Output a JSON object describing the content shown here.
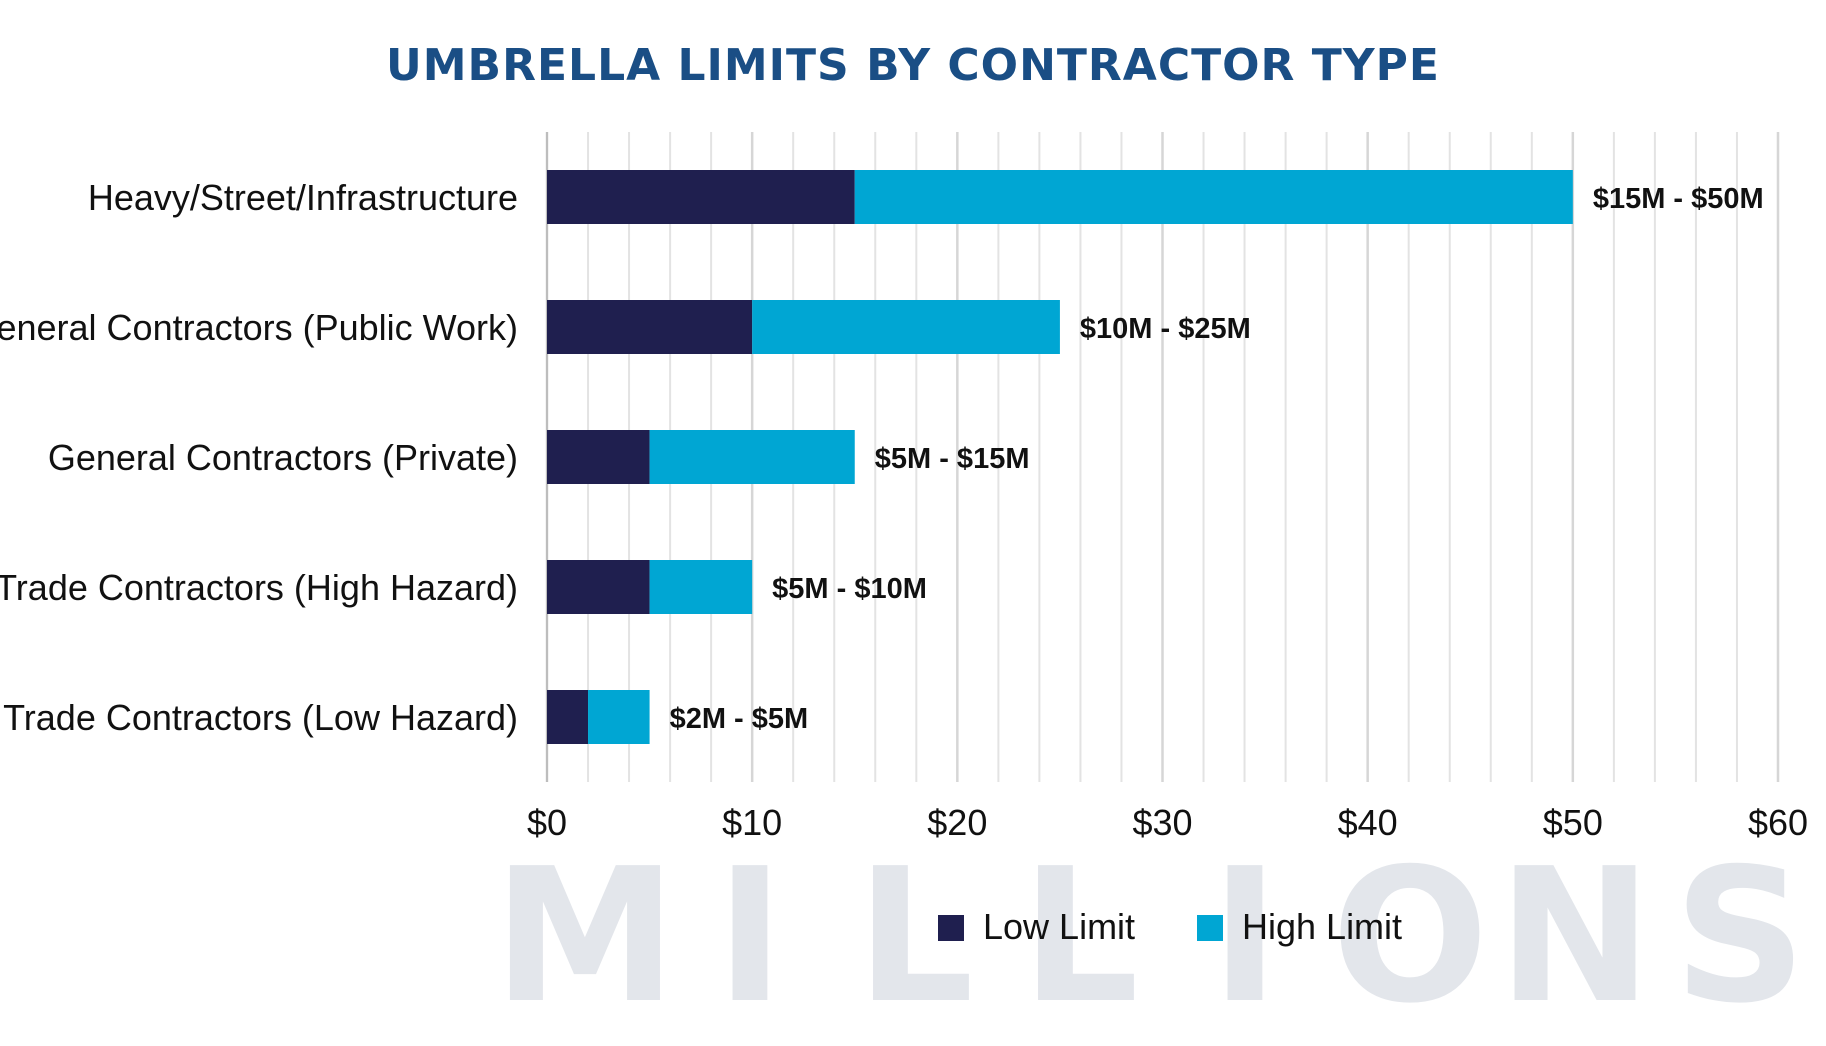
{
  "chart_data": {
    "type": "bar",
    "orientation": "horizontal",
    "stacked": true,
    "title": "UMBRELLA LIMITS BY CONTRACTOR TYPE",
    "watermark": "MILLIONS",
    "xlabel": "",
    "ylabel": "",
    "xlim": [
      0,
      60
    ],
    "x_ticks": [
      0,
      10,
      20,
      30,
      40,
      50,
      60
    ],
    "x_tick_labels": [
      "$0",
      "$10",
      "$20",
      "$30",
      "$40",
      "$50",
      "$60"
    ],
    "minor_grid_step": 2,
    "grid": true,
    "legend_position": "bottom",
    "categories": [
      "Heavy/Street/Infrastructure",
      "General Contractors (Public Work)",
      "General Contractors (Private)",
      "Trade Contractors (High Hazard)",
      "Trade Contractors (Low Hazard)"
    ],
    "series": [
      {
        "name": "Low Limit",
        "color": "#1f1f4f",
        "low": [
          0,
          0,
          0,
          0,
          0
        ],
        "high": [
          15,
          10,
          5,
          5,
          2
        ]
      },
      {
        "name": "High Limit",
        "color": "#00a6d3",
        "low": [
          15,
          10,
          5,
          5,
          2
        ],
        "high": [
          50,
          25,
          15,
          10,
          5
        ]
      }
    ],
    "data_labels": [
      "$15M - $50M",
      "$10M - $25M",
      "$5M - $15M",
      "$5M - $10M",
      "$2M - $5M"
    ],
    "colors": {
      "title": "#1a4e85",
      "grid": "#e3e3e3",
      "axis": "#bdbdbd",
      "text": "#111111",
      "watermark": "#e3e6eb"
    }
  }
}
